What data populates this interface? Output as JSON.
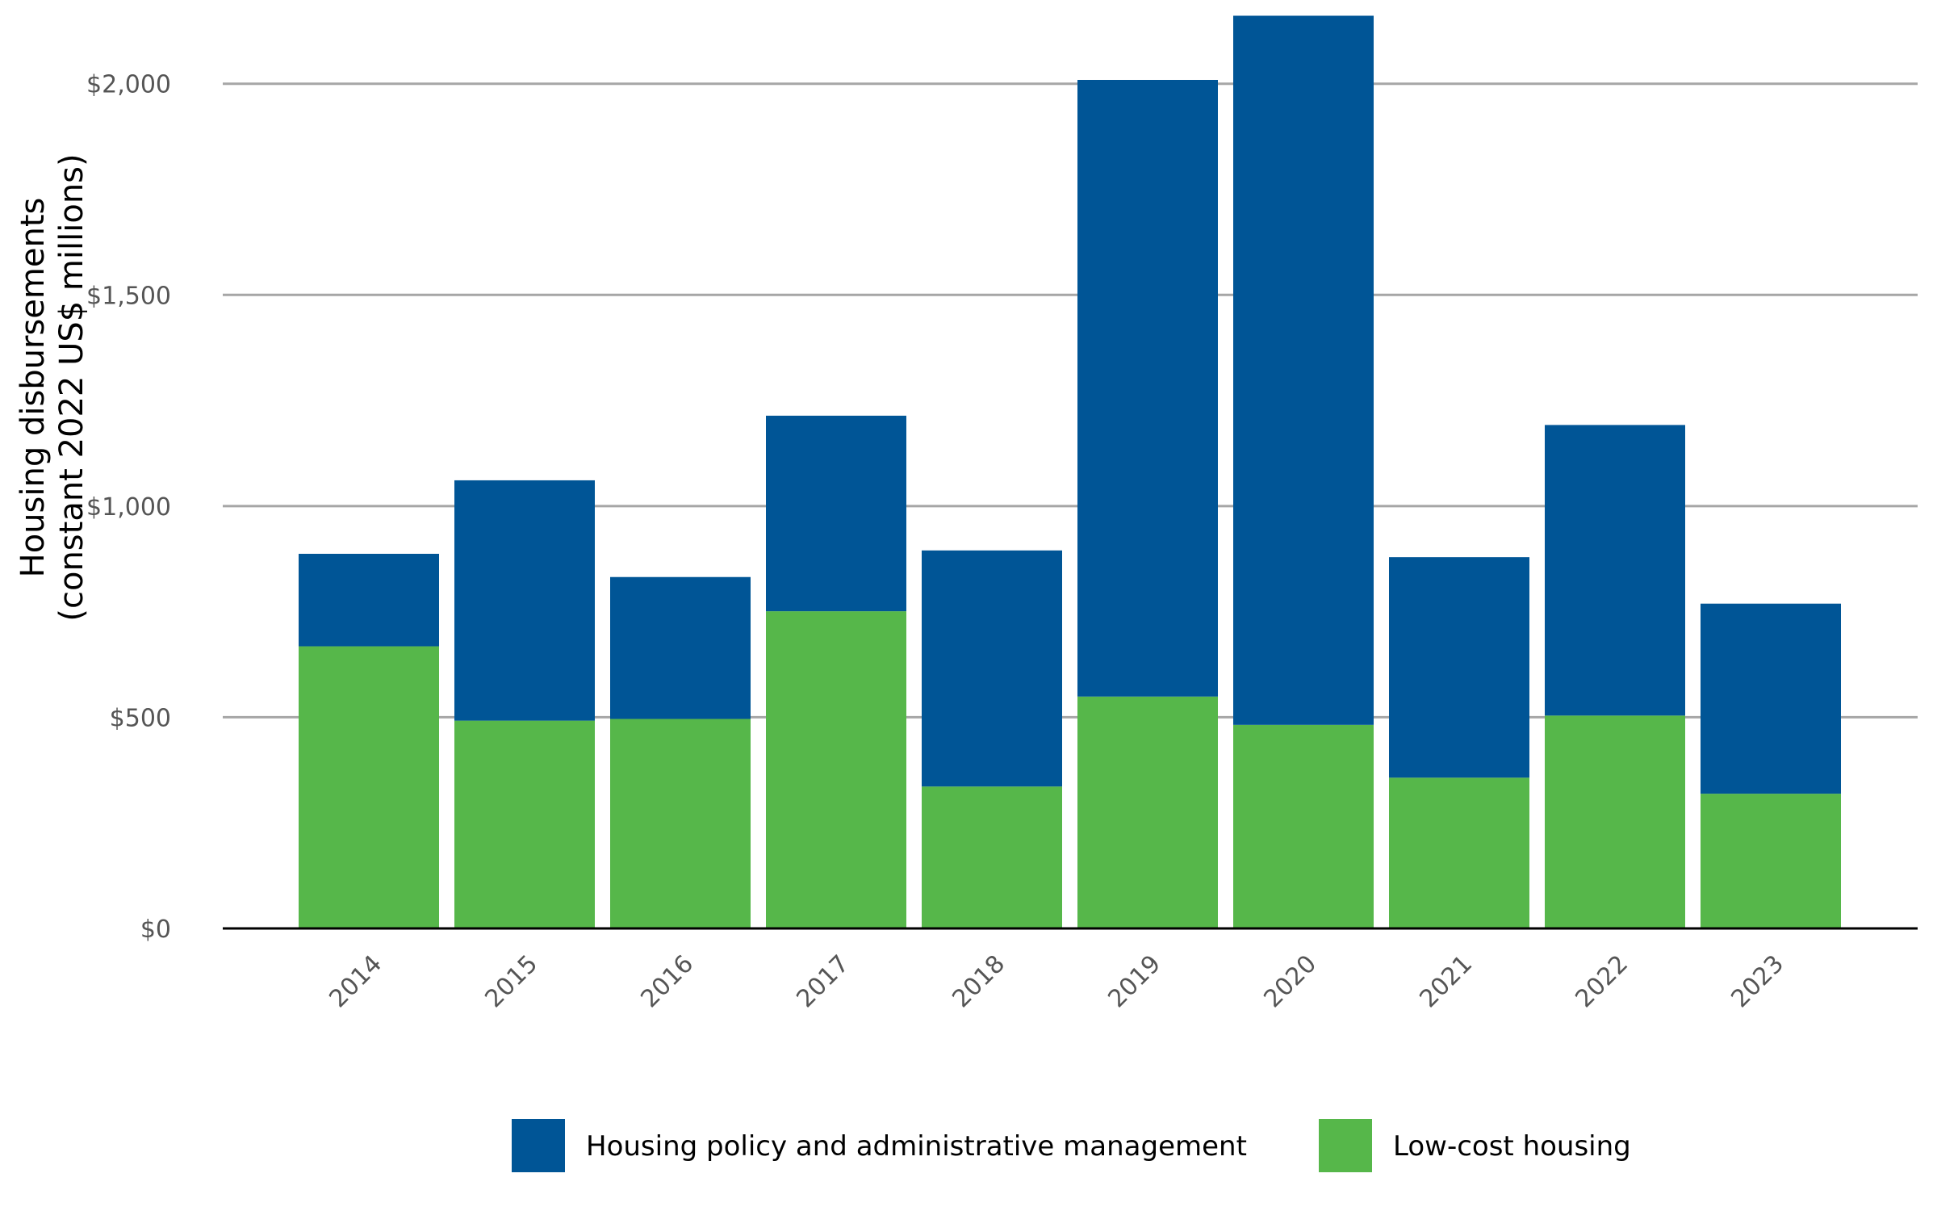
{
  "chart_data": {
    "type": "bar",
    "stacked": true,
    "categories": [
      "2014",
      "2015",
      "2016",
      "2017",
      "2018",
      "2019",
      "2020",
      "2021",
      "2022",
      "2023"
    ],
    "series": [
      {
        "name": "Low-cost housing",
        "color": "#56b74a",
        "values": [
          668,
          492,
          496,
          751,
          336,
          549,
          482,
          357,
          504,
          319
        ]
      },
      {
        "name": "Housing policy and administrative management",
        "color": "#005596",
        "values": [
          219,
          569,
          336,
          463,
          559,
          1460,
          1679,
          522,
          688,
          450
        ]
      }
    ],
    "ylabel_line1": "Housing disbursements",
    "ylabel_line2": "(constant 2022 US$ millions)",
    "xlabel": "",
    "ylim": [
      0,
      2160
    ],
    "yticks": [
      0,
      500,
      1000,
      1500,
      2000
    ],
    "ytick_labels": [
      "$0",
      "$500",
      "$1,000",
      "$1,500",
      "$2,000"
    ],
    "grid": true,
    "legend_position": "bottom",
    "legend_order": [
      "Housing policy and administrative management",
      "Low-cost housing"
    ]
  }
}
